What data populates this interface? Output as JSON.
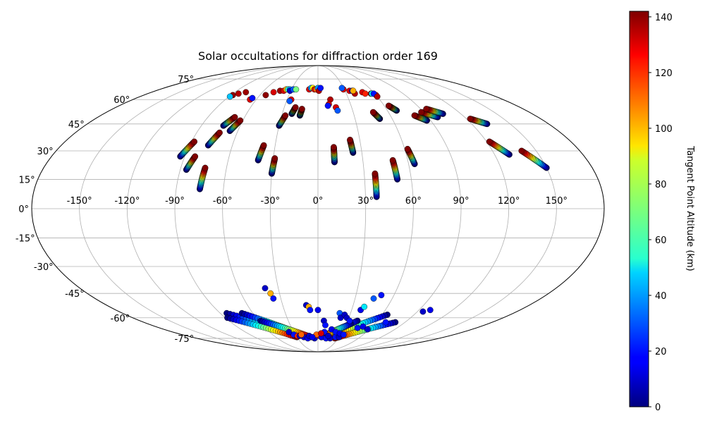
{
  "chart_data": {
    "type": "scatter",
    "projection": "mollweide",
    "title": "Solar occultations for diffraction order 169",
    "grid": true,
    "longitude_ticks": [
      -150,
      -120,
      -90,
      -60,
      -30,
      0,
      30,
      60,
      90,
      120,
      150
    ],
    "longitude_tick_labels": [
      "-150°",
      "-120°",
      "-90°",
      "-60°",
      "-30°",
      "0°",
      "30°",
      "60°",
      "90°",
      "120°",
      "150°"
    ],
    "latitude_ticks": [
      -75,
      -60,
      -45,
      -30,
      -15,
      0,
      15,
      30,
      45,
      60,
      75
    ],
    "latitude_tick_labels": [
      "-75°",
      "-60°",
      "-45°",
      "-30°",
      "-15°",
      "0°",
      "15°",
      "30°",
      "45°",
      "60°",
      "75°"
    ],
    "colorbar": {
      "label": "Tangent Point Altitude (km)",
      "min": 0,
      "max": 142,
      "ticks": [
        0,
        20,
        40,
        60,
        80,
        100,
        120,
        140
      ],
      "tick_labels": [
        "0",
        "20",
        "40",
        "60",
        "80",
        "100",
        "120",
        "140"
      ],
      "colormap": "jet"
    },
    "tracks": [
      {
        "lon_start": -93,
        "lat_start": 27,
        "lon_end": -88,
        "lat_end": 35
      },
      {
        "lon_start": -86,
        "lat_start": 20,
        "lon_end": -83,
        "lat_end": 27
      },
      {
        "lon_start": -75,
        "lat_start": 10,
        "lon_end": -74,
        "lat_end": 21
      },
      {
        "lon_start": -77,
        "lat_start": 33,
        "lon_end": -73,
        "lat_end": 40
      },
      {
        "lon_start": -73,
        "lat_start": 44,
        "lon_end": -68,
        "lat_end": 49
      },
      {
        "lon_start": -66,
        "lat_start": 41,
        "lon_end": -62,
        "lat_end": 47
      },
      {
        "lon_start": -40,
        "lat_start": 25,
        "lon_end": -38,
        "lat_end": 33
      },
      {
        "lon_start": -30,
        "lat_start": 18,
        "lon_end": -29,
        "lat_end": 26
      },
      {
        "lon_start": -30,
        "lat_start": 44,
        "lon_end": -27,
        "lat_end": 50
      },
      {
        "lon_start": -22,
        "lat_start": 51,
        "lon_end": -20,
        "lat_end": 55
      },
      {
        "lon_start": -15,
        "lat_start": 50,
        "lon_end": -14,
        "lat_end": 54
      },
      {
        "lon_start": 11,
        "lat_start": 24,
        "lon_end": 11,
        "lat_end": 32
      },
      {
        "lon_start": 24,
        "lat_start": 29,
        "lon_end": 23,
        "lat_end": 36
      },
      {
        "lon_start": 37,
        "lat_start": 6,
        "lon_end": 37,
        "lat_end": 18
      },
      {
        "lon_start": 51,
        "lat_start": 15,
        "lon_end": 50,
        "lat_end": 25
      },
      {
        "lon_start": 64,
        "lat_start": 23,
        "lon_end": 62,
        "lat_end": 31
      },
      {
        "lon_start": 50,
        "lat_start": 48,
        "lon_end": 47,
        "lat_end": 52
      },
      {
        "lon_start": 68,
        "lat_start": 53,
        "lon_end": 64,
        "lat_end": 56
      },
      {
        "lon_start": 87,
        "lat_start": 47,
        "lon_end": 80,
        "lat_end": 50
      },
      {
        "lon_start": 98,
        "lat_start": 49,
        "lon_end": 88,
        "lat_end": 52
      },
      {
        "lon_start": 105,
        "lat_start": 51,
        "lon_end": 95,
        "lat_end": 54
      },
      {
        "lon_start": 132,
        "lat_start": 45,
        "lon_end": 123,
        "lat_end": 48
      },
      {
        "lon_start": 130,
        "lat_start": 28,
        "lon_end": 122,
        "lat_end": 35
      },
      {
        "lon_start": 150,
        "lat_start": 21,
        "lon_end": 140,
        "lat_end": 30
      },
      {
        "lon_start": -84,
        "lat_start": -57,
        "lon_end": -20,
        "lat_end": -73
      },
      {
        "lon_start": -88,
        "lat_start": -60,
        "lon_end": -30,
        "lat_end": -74
      },
      {
        "lon_start": -70,
        "lat_start": -57,
        "lon_end": -18,
        "lat_end": -73
      },
      {
        "lon_start": -58,
        "lat_start": -62,
        "lon_end": -10,
        "lat_end": -74
      },
      {
        "lon_start": 65,
        "lat_start": -58,
        "lon_end": 15,
        "lat_end": -74
      },
      {
        "lon_start": 80,
        "lat_start": -63,
        "lon_end": 25,
        "lat_end": -75
      },
      {
        "lon_start": 40,
        "lat_start": -62,
        "lon_end": 10,
        "lat_end": -74
      },
      {
        "lon_start": 35,
        "lat_start": -64,
        "lon_end": 5,
        "lat_end": -74
      }
    ],
    "points": [
      [
        -88,
        63,
        140
      ],
      [
        -84,
        64,
        135
      ],
      [
        -78,
        65,
        138
      ],
      [
        -89,
        62,
        45
      ],
      [
        -66,
        60,
        130
      ],
      [
        -65,
        61,
        20
      ],
      [
        -54,
        63,
        140
      ],
      [
        -48,
        65,
        130
      ],
      [
        -42,
        66,
        138
      ],
      [
        -38,
        66,
        130
      ],
      [
        -36,
        67,
        100
      ],
      [
        -34,
        67,
        60
      ],
      [
        -32,
        67,
        40
      ],
      [
        -31,
        66,
        10
      ],
      [
        -28,
        67,
        30
      ],
      [
        -25,
        67,
        70
      ],
      [
        -26,
        60,
        130
      ],
      [
        -27,
        59,
        30
      ],
      [
        -10,
        67,
        130
      ],
      [
        -8,
        68,
        40
      ],
      [
        -6,
        68,
        90
      ],
      [
        -4,
        67,
        130
      ],
      [
        -2,
        67,
        110
      ],
      [
        0,
        68,
        40
      ],
      [
        1,
        66,
        135
      ],
      [
        3,
        68,
        20
      ],
      [
        12,
        60,
        135
      ],
      [
        10,
        57,
        130
      ],
      [
        9,
        56,
        20
      ],
      [
        16,
        55,
        130
      ],
      [
        17,
        53,
        30
      ],
      [
        29,
        67,
        130
      ],
      [
        28,
        68,
        30
      ],
      [
        35,
        66,
        130
      ],
      [
        38,
        66,
        20
      ],
      [
        39,
        64,
        135
      ],
      [
        39,
        66,
        100
      ],
      [
        48,
        65,
        130
      ],
      [
        50,
        64,
        120
      ],
      [
        56,
        64,
        140
      ],
      [
        57,
        64,
        50
      ],
      [
        60,
        63,
        130
      ],
      [
        59,
        64,
        20
      ],
      [
        60,
        62,
        135
      ],
      [
        -40,
        -42,
        10
      ],
      [
        -37,
        -45,
        100
      ],
      [
        -36,
        -48,
        20
      ],
      [
        -10,
        -52,
        10
      ],
      [
        -8,
        -53,
        100
      ],
      [
        -7,
        -55,
        20
      ],
      [
        0,
        -55,
        15
      ],
      [
        6,
        -62,
        10
      ],
      [
        8,
        -65,
        20
      ],
      [
        20,
        -57,
        30
      ],
      [
        22,
        -60,
        10
      ],
      [
        25,
        -58,
        10
      ],
      [
        28,
        -60,
        10
      ],
      [
        32,
        -62,
        20
      ],
      [
        38,
        -55,
        15
      ],
      [
        40,
        -53,
        50
      ],
      [
        45,
        -48,
        30
      ],
      [
        50,
        -46,
        20
      ],
      [
        -20,
        -74,
        10
      ],
      [
        -15,
        -75,
        15
      ],
      [
        -5,
        -75,
        10
      ],
      [
        2,
        -73,
        120
      ],
      [
        5,
        -74,
        15
      ],
      [
        12,
        -75,
        20
      ],
      [
        18,
        -75,
        10
      ],
      [
        25,
        -74,
        20
      ],
      [
        30,
        -74,
        10
      ],
      [
        8,
        -70,
        20
      ],
      [
        16,
        -68,
        15
      ],
      [
        22,
        -70,
        20
      ],
      [
        28,
        -71,
        15
      ],
      [
        34,
        -72,
        20
      ],
      [
        -32,
        -72,
        20
      ],
      [
        -28,
        -73,
        120
      ],
      [
        -25,
        -73,
        10
      ],
      [
        -36,
        -70,
        10
      ],
      [
        -22,
        -72,
        110
      ],
      [
        -12,
        -73,
        10
      ],
      [
        45,
        -67,
        20
      ],
      [
        50,
        -66,
        15
      ],
      [
        95,
        -56,
        10
      ],
      [
        100,
        -55,
        15
      ],
      [
        70,
        -63,
        20
      ],
      [
        58,
        -68,
        10
      ],
      [
        -2,
        -72,
        110
      ],
      [
        4,
        -71,
        130
      ],
      [
        -8,
        -74,
        15
      ],
      [
        14,
        -73,
        10
      ]
    ]
  }
}
